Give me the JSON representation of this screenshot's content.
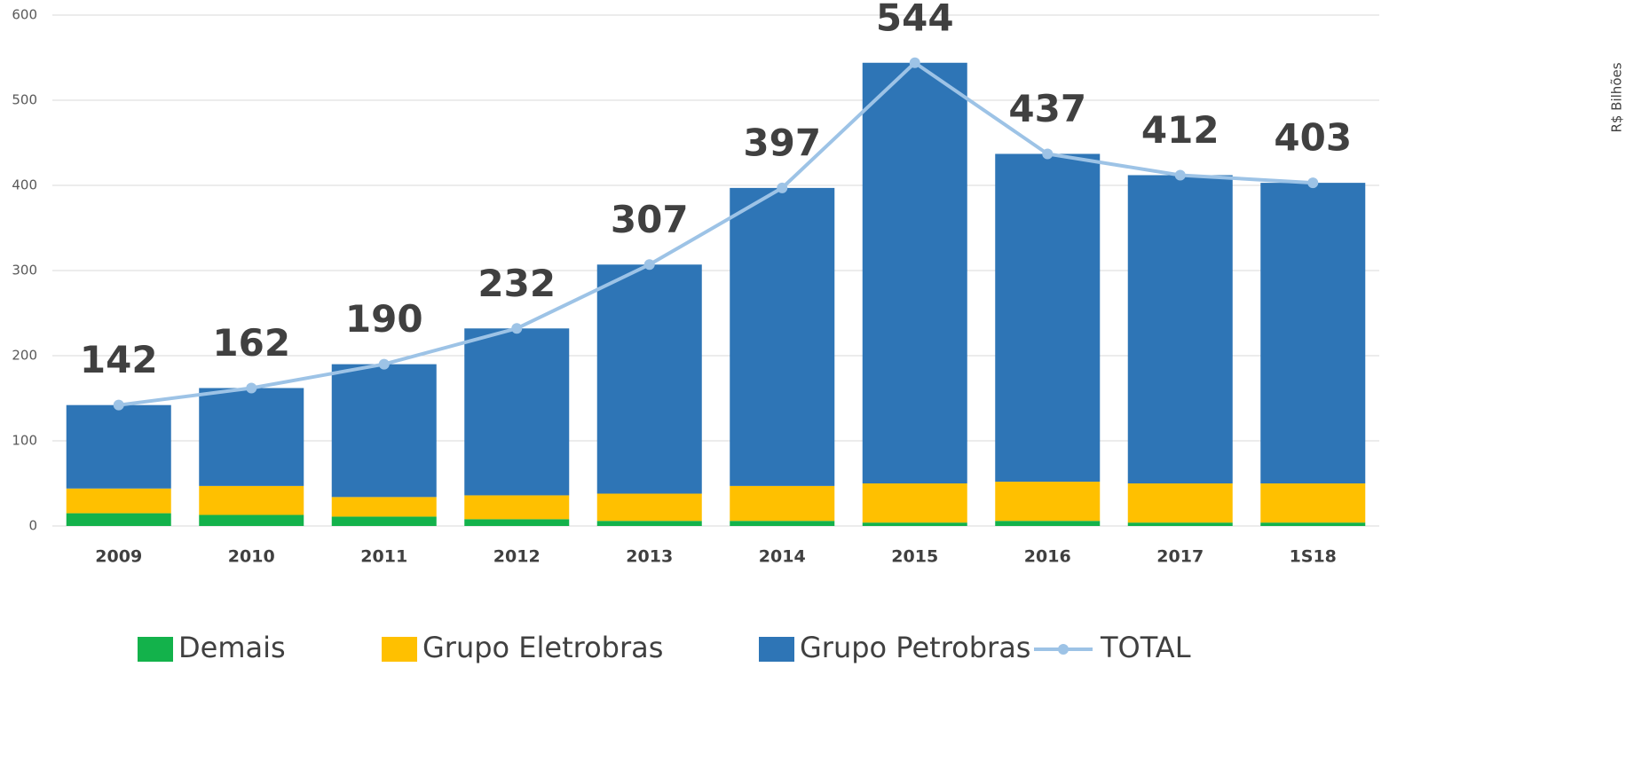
{
  "chart_data": {
    "type": "bar",
    "stacked": true,
    "y_axis_label": "R$ Bilhões",
    "categories": [
      "2009",
      "2010",
      "2011",
      "2012",
      "2013",
      "2014",
      "2015",
      "2016",
      "2017",
      "1S18"
    ],
    "series": [
      {
        "name": "Demais",
        "color": "#13b24b",
        "type": "bar",
        "values": [
          15,
          13,
          11,
          8,
          6,
          6,
          4,
          6,
          4,
          4
        ]
      },
      {
        "name": "Grupo Eletrobras",
        "color": "#ffc000",
        "type": "bar",
        "values": [
          29,
          34,
          23,
          28,
          32,
          41,
          46,
          46,
          46,
          46
        ]
      },
      {
        "name": "Grupo Petrobras",
        "color": "#2e75b6",
        "type": "bar",
        "values": [
          98,
          115,
          156,
          196,
          269,
          350,
          494,
          385,
          362,
          353
        ]
      },
      {
        "name": "TOTAL",
        "color": "#9dc3e6",
        "type": "line",
        "values": [
          142,
          162,
          190,
          232,
          307,
          397,
          544,
          437,
          412,
          403
        ]
      }
    ],
    "ylim": [
      0,
      600
    ],
    "yticks": [
      0,
      100,
      200,
      300,
      400,
      500,
      600
    ],
    "grid": true,
    "legend": "bottom"
  }
}
